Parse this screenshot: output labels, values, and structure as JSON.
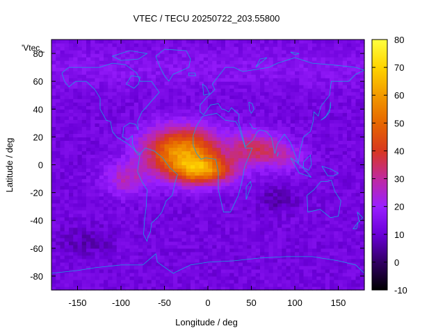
{
  "chart_data": {
    "type": "heatmap",
    "title": "VTEC / TECU 20250722_203.55800",
    "xlabel": "Longitude / deg",
    "ylabel": "Latitude / deg",
    "key_label": "'Vtec_",
    "xlim": [
      -180,
      180
    ],
    "ylim": [
      -90,
      90
    ],
    "x_ticks": [
      -150,
      -100,
      -50,
      0,
      50,
      100,
      150
    ],
    "y_ticks": [
      -80,
      -60,
      -40,
      -20,
      0,
      20,
      40,
      60,
      80
    ],
    "colorbar": {
      "range": [
        -10,
        80
      ],
      "ticks": [
        -10,
        0,
        10,
        20,
        30,
        40,
        50,
        60,
        70,
        80
      ],
      "palette": [
        "#000000",
        "#320064",
        "#6a00d8",
        "#9a1fff",
        "#c0299f",
        "#d8381f",
        "#e66600",
        "#f29a00",
        "#ffd400",
        "#ffff40"
      ]
    },
    "grid": {
      "lon_step": 5,
      "lat_step": 2.5,
      "model": "background ~12 TECU with equatorial anomaly crest centered near lon -30, lat +5 (~60 TECU), extending eastward to lon ~90",
      "peak_value": 60,
      "background_value": 12
    },
    "overlay": "coastlines",
    "coastline_color": "#1aa0e0"
  }
}
